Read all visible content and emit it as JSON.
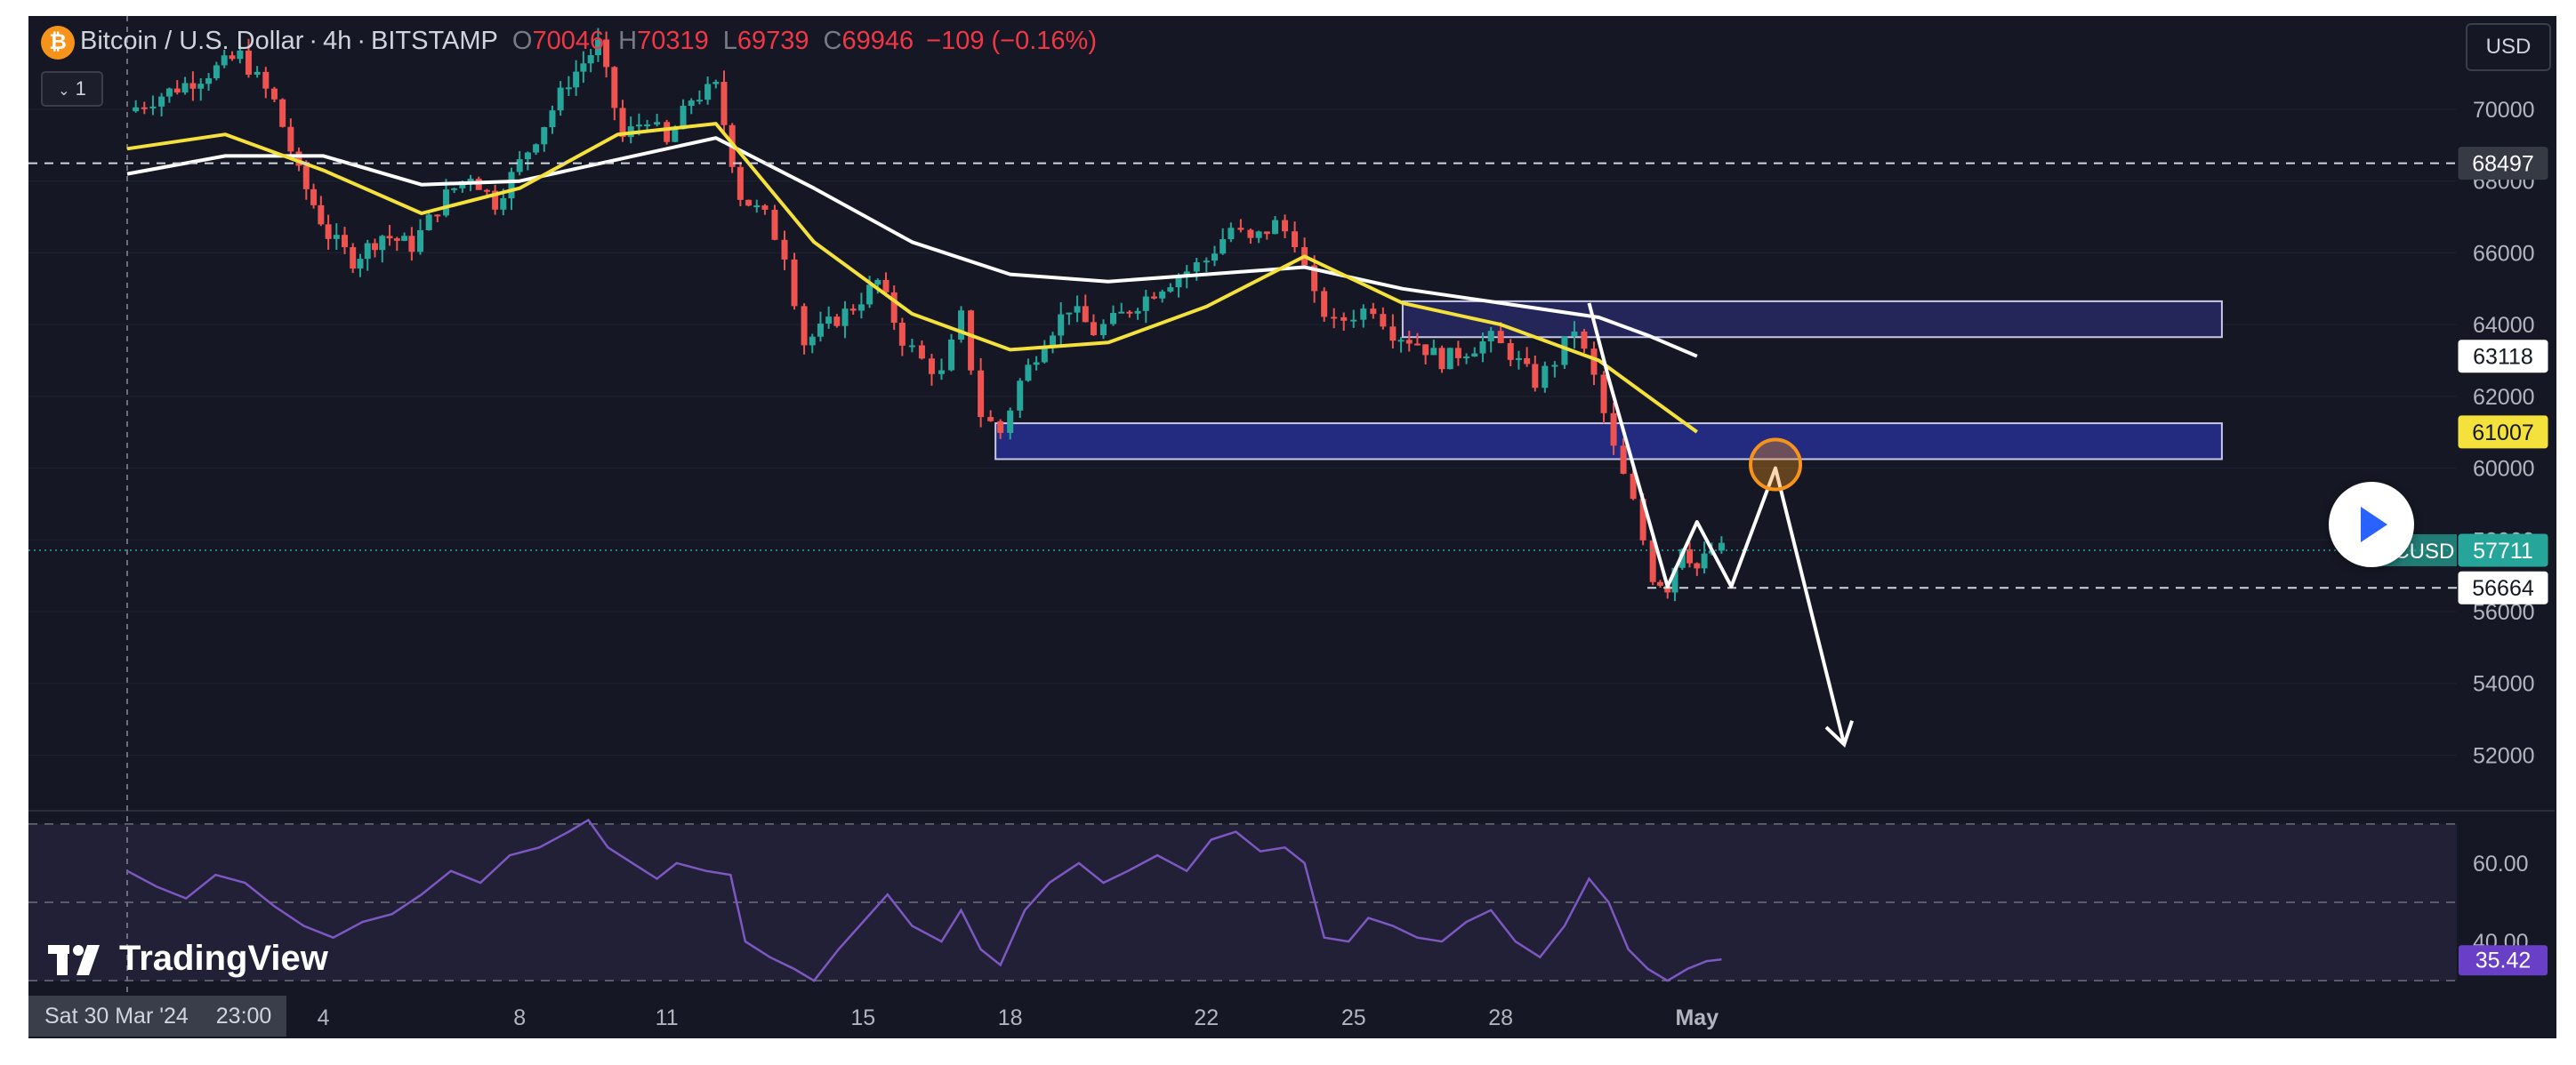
{
  "header": {
    "symbol_title": "Bitcoin / U.S. Dollar",
    "interval": "4h",
    "exchange": "BITSTAMP",
    "open_label": "O",
    "open_value": "70046",
    "high_label": "H",
    "high_value": "70319",
    "low_label": "L",
    "low_value": "69739",
    "close_label": "C",
    "close_value": "69946",
    "change": "−109 (−0.16%)",
    "indicator_count": "1"
  },
  "toolbar": {
    "currency": "USD"
  },
  "watermark": {
    "text": "TradingView"
  },
  "crosshair": {
    "date_label": "Sat 30 Mar '24",
    "time_label": "23:00"
  },
  "colors": {
    "background": "#151824",
    "up": "#26a69a",
    "down": "#ef5350",
    "ema_fast": "#f5e13b",
    "ema_slow": "#ffffff",
    "rsi": "#7e57c2",
    "zone_upper": "#2a2a6a",
    "zone_lower": "#232d8a",
    "marker": "#f7931a"
  },
  "chart_data": {
    "type": "candlestick",
    "symbol": "BTCUSD",
    "timeframe": "4h",
    "price_axis": {
      "ylim": [
        50500,
        72600
      ],
      "ticks": [
        52000,
        54000,
        56000,
        58000,
        60000,
        62000,
        64000,
        66000,
        68000,
        70000
      ]
    },
    "x_axis": {
      "labels": [
        {
          "label": "4",
          "day": 4
        },
        {
          "label": "8",
          "day": 8
        },
        {
          "label": "11",
          "day": 11
        },
        {
          "label": "15",
          "day": 15
        },
        {
          "label": "18",
          "day": 18
        },
        {
          "label": "22",
          "day": 22
        },
        {
          "label": "25",
          "day": 25
        },
        {
          "label": "28",
          "day": 28
        },
        {
          "label": "May",
          "day": 32
        }
      ]
    },
    "candles_close_path": [
      [
        0.0,
        69946
      ],
      [
        0.7,
        70400
      ],
      [
        1.5,
        70900
      ],
      [
        2.3,
        71500
      ],
      [
        3.0,
        70200
      ],
      [
        3.5,
        68200
      ],
      [
        4.1,
        66500
      ],
      [
        4.6,
        65800
      ],
      [
        5.2,
        66500
      ],
      [
        5.8,
        66200
      ],
      [
        6.5,
        67600
      ],
      [
        7.0,
        68200
      ],
      [
        7.5,
        67400
      ],
      [
        8.0,
        68500
      ],
      [
        8.5,
        69600
      ],
      [
        9.0,
        70800
      ],
      [
        9.6,
        71800
      ],
      [
        10.1,
        69200
      ],
      [
        10.6,
        69800
      ],
      [
        11.0,
        69000
      ],
      [
        11.5,
        70300
      ],
      [
        12.0,
        70600
      ],
      [
        12.5,
        67600
      ],
      [
        13.0,
        67000
      ],
      [
        13.4,
        66000
      ],
      [
        13.8,
        63500
      ],
      [
        14.3,
        64000
      ],
      [
        14.8,
        64500
      ],
      [
        15.3,
        65200
      ],
      [
        15.8,
        63600
      ],
      [
        16.2,
        63000
      ],
      [
        16.6,
        62600
      ],
      [
        17.0,
        64200
      ],
      [
        17.4,
        61500
      ],
      [
        17.8,
        61000
      ],
      [
        18.2,
        62400
      ],
      [
        18.7,
        63600
      ],
      [
        19.2,
        64500
      ],
      [
        19.7,
        63800
      ],
      [
        20.1,
        64100
      ],
      [
        20.6,
        64600
      ],
      [
        21.1,
        65100
      ],
      [
        21.6,
        65500
      ],
      [
        22.0,
        65800
      ],
      [
        22.5,
        66700
      ],
      [
        22.9,
        66300
      ],
      [
        23.4,
        66800
      ],
      [
        23.8,
        66400
      ],
      [
        24.2,
        64700
      ],
      [
        24.6,
        64000
      ],
      [
        25.0,
        64300
      ],
      [
        25.4,
        64500
      ],
      [
        25.8,
        63800
      ],
      [
        26.3,
        63500
      ],
      [
        26.8,
        63000
      ],
      [
        27.3,
        63300
      ],
      [
        27.8,
        63600
      ],
      [
        28.2,
        63200
      ],
      [
        28.7,
        62400
      ],
      [
        29.1,
        63000
      ],
      [
        29.5,
        63900
      ],
      [
        29.9,
        62500
      ],
      [
        30.3,
        60500
      ],
      [
        30.7,
        59000
      ],
      [
        31.1,
        57000
      ],
      [
        31.4,
        56700
      ],
      [
        31.7,
        57900
      ],
      [
        32.0,
        57200
      ],
      [
        32.3,
        57700
      ],
      [
        32.5,
        57711
      ]
    ],
    "ema_fast": {
      "name": "",
      "last_value": 61007,
      "points": [
        [
          0,
          68900
        ],
        [
          2,
          69300
        ],
        [
          4,
          68300
        ],
        [
          6,
          67100
        ],
        [
          8,
          67800
        ],
        [
          10,
          69300
        ],
        [
          12,
          69600
        ],
        [
          14,
          66300
        ],
        [
          16,
          64300
        ],
        [
          18,
          63300
        ],
        [
          20,
          63500
        ],
        [
          22,
          64500
        ],
        [
          24,
          65900
        ],
        [
          26,
          64600
        ],
        [
          28,
          64000
        ],
        [
          30,
          63000
        ],
        [
          31,
          62000
        ],
        [
          32,
          61007
        ]
      ]
    },
    "ema_slow": {
      "name": "",
      "last_value": 63118,
      "points": [
        [
          0,
          68200
        ],
        [
          2,
          68700
        ],
        [
          4,
          68700
        ],
        [
          6,
          67900
        ],
        [
          8,
          68000
        ],
        [
          10,
          68600
        ],
        [
          12,
          69200
        ],
        [
          14,
          67800
        ],
        [
          16,
          66300
        ],
        [
          18,
          65400
        ],
        [
          20,
          65200
        ],
        [
          22,
          65400
        ],
        [
          24,
          65600
        ],
        [
          26,
          65000
        ],
        [
          28,
          64600
        ],
        [
          30,
          64200
        ],
        [
          31,
          63700
        ],
        [
          32,
          63118
        ]
      ]
    },
    "zones": [
      {
        "from_day": 26.0,
        "to_day": 42.7,
        "price_low": 63650,
        "price_high": 64650
      },
      {
        "from_day": 17.7,
        "to_day": 42.7,
        "price_low": 60250,
        "price_high": 61250
      }
    ],
    "dashed_lines": [
      {
        "price": 68497,
        "label": "68497"
      },
      {
        "price": 56664,
        "label": "56664"
      }
    ],
    "last_price": {
      "price": 57711,
      "label": "57711",
      "symbol_tag": "BTCUSD"
    },
    "projection_path": [
      [
        29.8,
        64600
      ],
      [
        30.2,
        62500
      ],
      [
        31.4,
        56700
      ],
      [
        32.0,
        58500
      ],
      [
        32.7,
        56700
      ],
      [
        33.6,
        60000
      ],
      [
        35.0,
        52300
      ]
    ],
    "marker_circle": {
      "day": 33.6,
      "price": 60100
    },
    "rsi": {
      "axis_ticks": [
        60.0,
        40.0
      ],
      "last_value": "35.42",
      "bands": [
        70,
        50,
        30
      ],
      "ylim": [
        28,
        72
      ],
      "values": [
        [
          0,
          58
        ],
        [
          0.6,
          54
        ],
        [
          1.2,
          51
        ],
        [
          1.8,
          57
        ],
        [
          2.4,
          55
        ],
        [
          3.0,
          49
        ],
        [
          3.6,
          44
        ],
        [
          4.2,
          41
        ],
        [
          4.8,
          45
        ],
        [
          5.4,
          47
        ],
        [
          6.0,
          52
        ],
        [
          6.6,
          58
        ],
        [
          7.2,
          55
        ],
        [
          7.8,
          62
        ],
        [
          8.4,
          64
        ],
        [
          9.0,
          68
        ],
        [
          9.4,
          71
        ],
        [
          9.8,
          64
        ],
        [
          10.3,
          60
        ],
        [
          10.8,
          56
        ],
        [
          11.2,
          60
        ],
        [
          11.8,
          58
        ],
        [
          12.3,
          57
        ],
        [
          12.6,
          40
        ],
        [
          13.1,
          36
        ],
        [
          13.6,
          33
        ],
        [
          14.0,
          30
        ],
        [
          14.5,
          38
        ],
        [
          15.0,
          45
        ],
        [
          15.5,
          52
        ],
        [
          16.0,
          44
        ],
        [
          16.6,
          40
        ],
        [
          17.0,
          48
        ],
        [
          17.4,
          38
        ],
        [
          17.8,
          34
        ],
        [
          18.3,
          48
        ],
        [
          18.8,
          55
        ],
        [
          19.4,
          60
        ],
        [
          19.9,
          55
        ],
        [
          20.4,
          58
        ],
        [
          21.0,
          62
        ],
        [
          21.6,
          58
        ],
        [
          22.1,
          66
        ],
        [
          22.6,
          68
        ],
        [
          23.1,
          63
        ],
        [
          23.6,
          64
        ],
        [
          24.0,
          60
        ],
        [
          24.4,
          41
        ],
        [
          24.9,
          40
        ],
        [
          25.3,
          46
        ],
        [
          25.8,
          44
        ],
        [
          26.3,
          41
        ],
        [
          26.8,
          40
        ],
        [
          27.3,
          45
        ],
        [
          27.8,
          48
        ],
        [
          28.3,
          40
        ],
        [
          28.8,
          36
        ],
        [
          29.3,
          44
        ],
        [
          29.8,
          56
        ],
        [
          30.2,
          50
        ],
        [
          30.6,
          38
        ],
        [
          31.0,
          33
        ],
        [
          31.4,
          30
        ],
        [
          31.8,
          33
        ],
        [
          32.2,
          35
        ],
        [
          32.5,
          35.42
        ]
      ]
    }
  }
}
